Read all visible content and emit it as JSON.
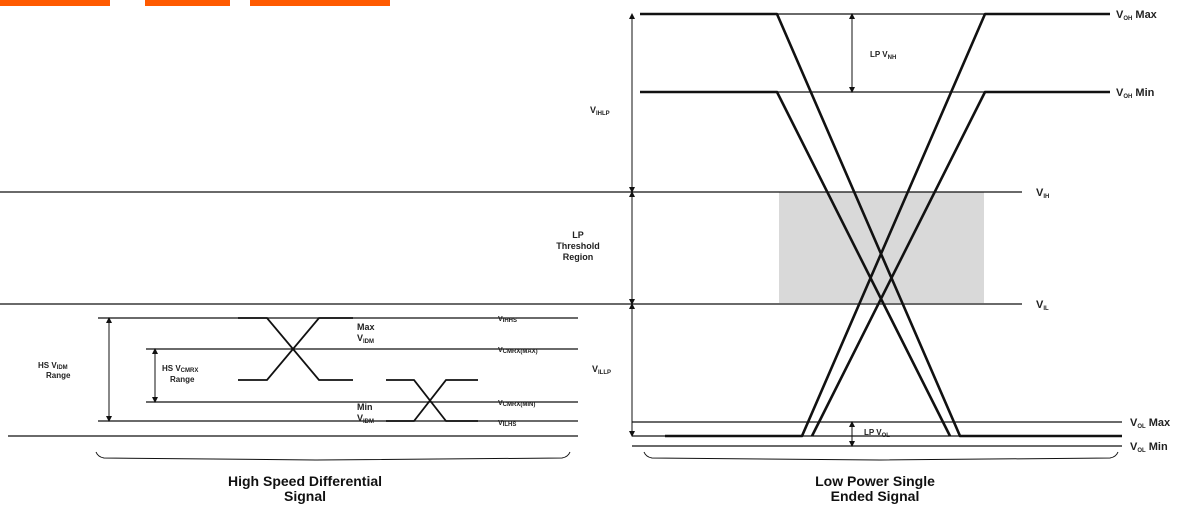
{
  "colors": {
    "header_accent": "#ff5a00",
    "lines": "#111111",
    "threshold_region": "#d9d9d9"
  },
  "right_labels": {
    "voh_max": {
      "main": "V",
      "sub": "OH",
      "tail": " Max"
    },
    "voh_min": {
      "main": "V",
      "sub": "OH",
      "tail": " Min"
    },
    "vih": {
      "main": "V",
      "sub": "IH",
      "tail": ""
    },
    "vil": {
      "main": "V",
      "sub": "IL",
      "tail": ""
    },
    "vol_max": {
      "main": "V",
      "sub": "OL",
      "tail": " Max"
    },
    "vol_min": {
      "main": "V",
      "sub": "OL",
      "tail": " Min"
    }
  },
  "center_labels": {
    "vihlp": {
      "main": "V",
      "sub": "IHLP"
    },
    "vilp": {
      "main": "V",
      "sub": "ILLP"
    },
    "lp_threshold": [
      "LP",
      "Threshold",
      "Region"
    ],
    "lp_vnh": {
      "main": "LP V",
      "sub": "NH"
    },
    "lp_vnl": {
      "main": "LP V",
      "sub": "OL"
    }
  },
  "hs_labels": {
    "vihhs": {
      "main": "V",
      "sub": "IHHS"
    },
    "vcmrx_max": {
      "main": "V",
      "sub": "CMRX(MAX)"
    },
    "vcmrx_min": {
      "main": "V",
      "sub": "CMRX(MIN)"
    },
    "vilhs": {
      "main": "V",
      "sub": "ILHS"
    },
    "max_vidm": {
      "line1": "Max",
      "main": "V",
      "sub": "IDM"
    },
    "min_vidm": {
      "line1": "Min",
      "main": "V",
      "sub": "IDM"
    },
    "hs_vidm_range": {
      "line1a": "HS V",
      "line1sub": "IDM",
      "line2": "Range"
    },
    "hs_vcmrx_range": {
      "line1a": "HS V",
      "line1sub": "CMRX",
      "line2": "Range"
    }
  },
  "captions": {
    "left": [
      "High Speed Differential",
      "Signal"
    ],
    "right": [
      "Low Power Single",
      "Ended Signal"
    ]
  }
}
